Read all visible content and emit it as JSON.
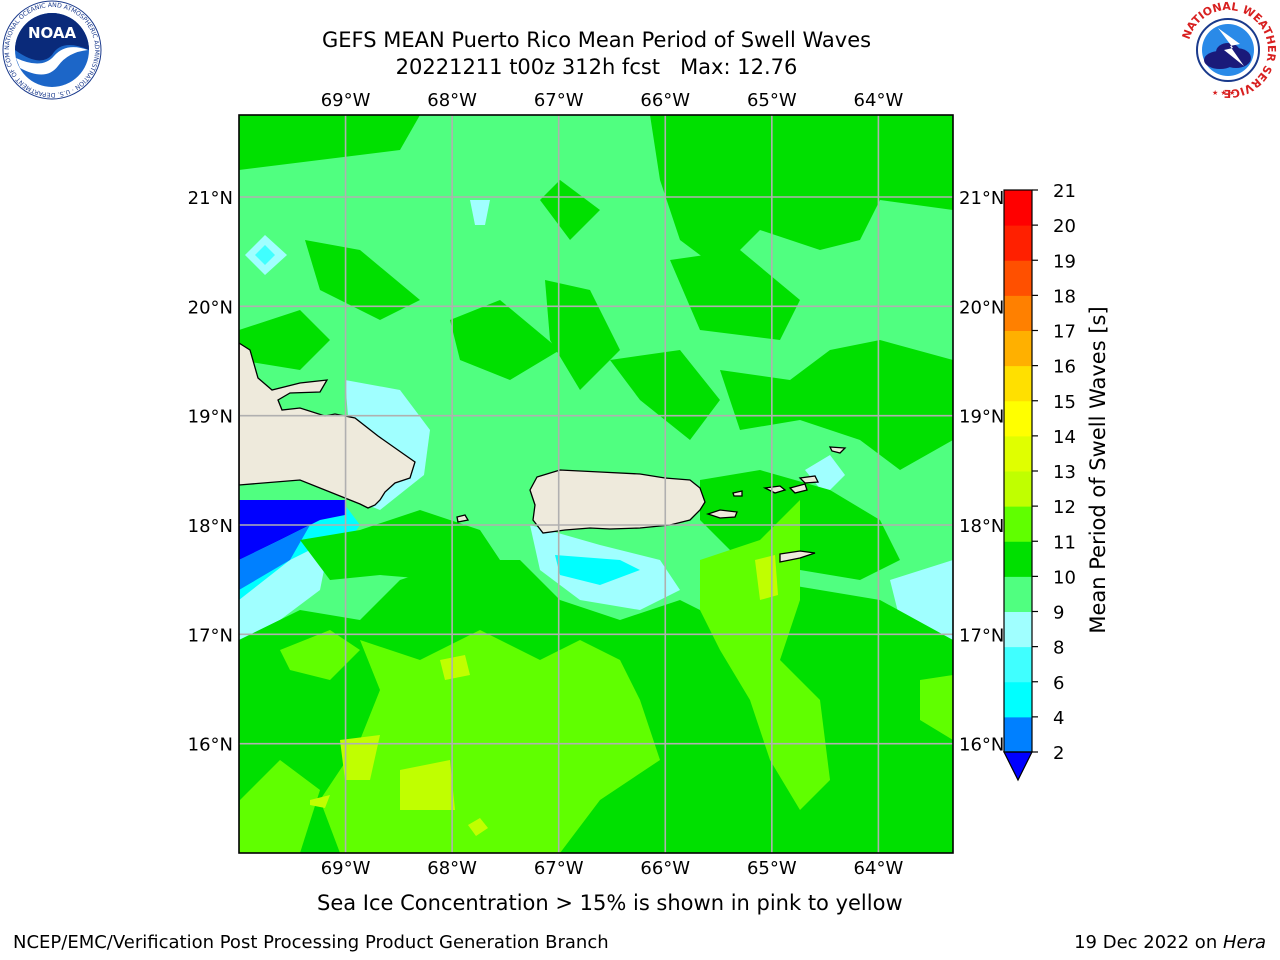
{
  "title": {
    "line1": "GEFS MEAN Puerto Rico Mean Period of Swell Waves",
    "line2": "20221211 t00z 312h fcst   Max: 12.76"
  },
  "map": {
    "lon_labels": [
      "69°W",
      "68°W",
      "67°W",
      "66°W",
      "65°W",
      "64°W"
    ],
    "lat_labels": [
      "21°N",
      "20°N",
      "19°N",
      "18°N",
      "17°N",
      "16°N"
    ],
    "lon_range": [
      -70.0,
      -63.3
    ],
    "lat_range": [
      15.0,
      21.75
    ],
    "land_color": "#eeeadc",
    "ocean_base_color": "#50ff80"
  },
  "colorbar": {
    "label": "Mean Period of Swell Waves [s]",
    "ticks": [
      "21",
      "20",
      "19",
      "18",
      "17",
      "16",
      "15",
      "14",
      "13",
      "12",
      "11",
      "10",
      "9",
      "8",
      "6",
      "4",
      "2"
    ],
    "levels": [
      2,
      4,
      6,
      8,
      9,
      10,
      11,
      12,
      13,
      14,
      15,
      16,
      17,
      18,
      19,
      20,
      21
    ],
    "colors": [
      "#0000ff",
      "#0080ff",
      "#00ffff",
      "#40ffff",
      "#a0ffff",
      "#50ff80",
      "#00e000",
      "#60ff00",
      "#c0ff00",
      "#e0ff00",
      "#ffff00",
      "#ffe000",
      "#ffb000",
      "#ff8000",
      "#ff5000",
      "#ff2000",
      "#ff0000"
    ],
    "under_color": "#0000ff"
  },
  "caption": "Sea Ice Concentration > 15% is shown in pink to yellow",
  "footer": {
    "left": "NCEP/EMC/Verification Post Processing Product Generation Branch",
    "right_date": "19 Dec 2022 on ",
    "right_system": "Hera"
  },
  "logos": {
    "noaa_text": "NOAA",
    "noaa_ring": "NATIONAL OCEANIC AND ATMOSPHERIC ADMINISTRATION · U.S. DEPARTMENT OF COMMERCE",
    "nws_ring": "NATIONAL WEATHER SERVICE"
  }
}
